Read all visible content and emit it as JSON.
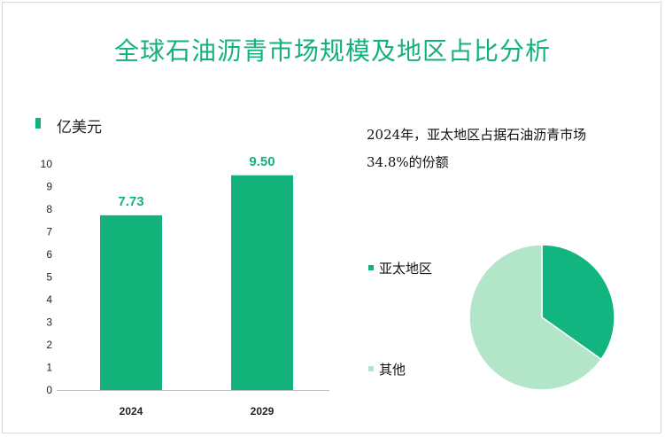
{
  "title": "全球石油沥青市场规模及地区占比分析",
  "unit_label": "亿美元",
  "pie_caption_line1": "2024年，亚太地区占据石油沥青市场",
  "pie_caption_line2": "34.8%的份额",
  "colors": {
    "title": "#13b27b",
    "bar": "#13b27b",
    "bar_label": "#13b27b",
    "pie_asia": "#12b57f",
    "pie_other": "#b3e5c8"
  },
  "chart_data": [
    {
      "type": "bar",
      "categories": [
        "2024",
        "2029"
      ],
      "values": [
        7.73,
        9.5
      ],
      "value_labels": [
        "7.73",
        "9.50"
      ],
      "title": "",
      "xlabel": "",
      "ylabel": "亿美元",
      "ylim": [
        0,
        10
      ],
      "yticks": [
        0,
        1,
        2,
        3,
        4,
        5,
        6,
        7,
        8,
        9,
        10
      ],
      "grid": false
    },
    {
      "type": "pie",
      "labels": [
        "亚太地区",
        "其他"
      ],
      "values": [
        34.8,
        65.2
      ],
      "legend_position": "left"
    }
  ]
}
